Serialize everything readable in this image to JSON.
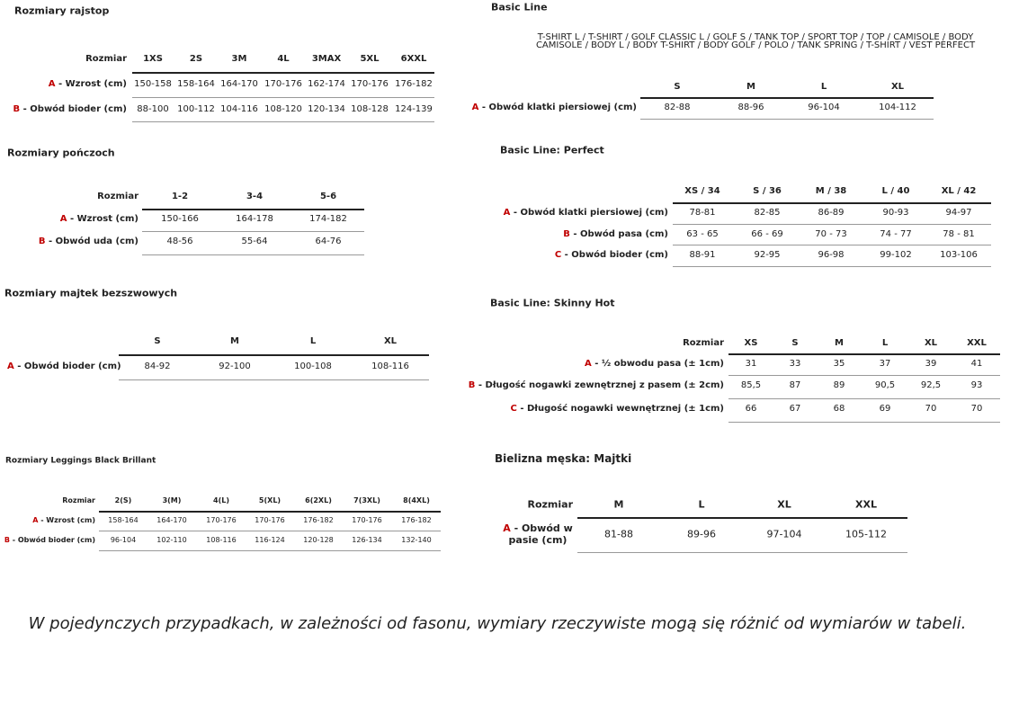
{
  "tables": [
    {
      "title": "Rozmiary rajstop",
      "corner": "Rozmiar",
      "columns": [
        "1XS",
        "2S",
        "3M",
        "4L",
        "3MAX",
        "5XL",
        "6XXL"
      ],
      "rows": [
        {
          "letter": "A",
          "label": "- Wzrost (cm)",
          "cells": [
            "150-158",
            "158-164",
            "164-170",
            "170-176",
            "162-174",
            "170-176",
            "176-182"
          ]
        },
        {
          "letter": "B",
          "label": "- Obwód bioder (cm)",
          "cells": [
            "88-100",
            "100-112",
            "104-116",
            "108-120",
            "120-134",
            "108-128",
            "124-139"
          ]
        }
      ]
    },
    {
      "title": "Rozmiary pończoch",
      "corner": "Rozmiar",
      "columns": [
        "1-2",
        "3-4",
        "5-6"
      ],
      "rows": [
        {
          "letter": "A",
          "label": "- Wzrost (cm)",
          "cells": [
            "150-166",
            "164-178",
            "174-182"
          ]
        },
        {
          "letter": "B",
          "label": "- Obwód uda (cm)",
          "cells": [
            "48-56",
            "55-64",
            "64-76"
          ]
        }
      ]
    },
    {
      "title": "Rozmiary majtek bezszwowych",
      "columns": [
        "S",
        "M",
        "L",
        "XL"
      ],
      "rows": [
        {
          "letter": "A",
          "label": "- Obwód bioder (cm)",
          "cells": [
            "84-92",
            "92-100",
            "100-108",
            "108-116"
          ]
        }
      ]
    },
    {
      "title": "Rozmiary Leggings Black Brillant",
      "corner": "Rozmiar",
      "columns": [
        "2(S)",
        "3(M)",
        "4(L)",
        "5(XL)",
        "6(2XL)",
        "7(3XL)",
        "8(4XL)"
      ],
      "rows": [
        {
          "letter": "A",
          "label": "- Wzrost (cm)",
          "cells": [
            "158-164",
            "164-170",
            "170-176",
            "170-176",
            "176-182",
            "170-176",
            "176-182"
          ]
        },
        {
          "letter": "B",
          "label": "- Obwód bioder (cm)",
          "cells": [
            "96-104",
            "102-110",
            "108-116",
            "116-124",
            "120-128",
            "126-134",
            "132-140"
          ]
        }
      ]
    },
    {
      "title": "Basic Line",
      "subtitle": [
        "T-SHIRT L / T-SHIRT / GOLF CLASSIC L / GOLF S / TANK TOP / SPORT TOP / TOP / CAMISOLE / BODY",
        "CAMISOLE / BODY L / BODY T-SHIRT / BODY GOLF / POLO / TANK SPRING / T-SHIRT / VEST PERFECT"
      ],
      "columns": [
        "S",
        "M",
        "L",
        "XL"
      ],
      "rows": [
        {
          "letter": "A",
          "label": "- Obwód klatki piersiowej (cm)",
          "cells": [
            "82-88",
            "88-96",
            "96-104",
            "104-112"
          ]
        }
      ]
    },
    {
      "title": "Basic Line: Perfect",
      "columns": [
        "XS / 34",
        "S / 36",
        "M / 38",
        "L / 40",
        "XL / 42"
      ],
      "rows": [
        {
          "letter": "A",
          "label": "- Obwód klatki piersiowej (cm)",
          "cells": [
            "78-81",
            "82-85",
            "86-89",
            "90-93",
            "94-97"
          ]
        },
        {
          "letter": "B",
          "label": "- Obwód pasa (cm)",
          "cells": [
            "63 - 65",
            "66 - 69",
            "70 - 73",
            "74 - 77",
            "78 - 81"
          ]
        },
        {
          "letter": "C",
          "label": "- Obwód bioder (cm)",
          "cells": [
            "88-91",
            "92-95",
            "96-98",
            "99-102",
            "103-106"
          ]
        }
      ]
    },
    {
      "title": "Basic Line: Skinny Hot",
      "corner": "Rozmiar",
      "columns": [
        "XS",
        "S",
        "M",
        "L",
        "XL",
        "XXL"
      ],
      "rows": [
        {
          "letter": "A",
          "label": "- ½ obwodu pasa (± 1cm)",
          "cells": [
            "31",
            "33",
            "35",
            "37",
            "39",
            "41"
          ]
        },
        {
          "letter": "B",
          "label": "- Długość nogawki zewnętrznej z pasem (± 2cm)",
          "cells": [
            "85,5",
            "87",
            "89",
            "90,5",
            "92,5",
            "93"
          ]
        },
        {
          "letter": "C",
          "label": "- Długość nogawki wewnętrznej (± 1cm)",
          "cells": [
            "66",
            "67",
            "68",
            "69",
            "70",
            "70"
          ]
        }
      ]
    },
    {
      "title": "Bielizna męska: Majtki",
      "corner": "Rozmiar",
      "columns": [
        "M",
        "L",
        "XL",
        "XXL"
      ],
      "rows": [
        {
          "letter": "A",
          "label": "- Obwód w pasie (cm)",
          "cells": [
            "81-88",
            "89-96",
            "97-104",
            "105-112"
          ]
        }
      ]
    }
  ],
  "footer": "W pojedynczych przypadkach, w zależności od fasonu, wymiary rzeczywiste mogą się różnić od wymiarów w tabeli."
}
